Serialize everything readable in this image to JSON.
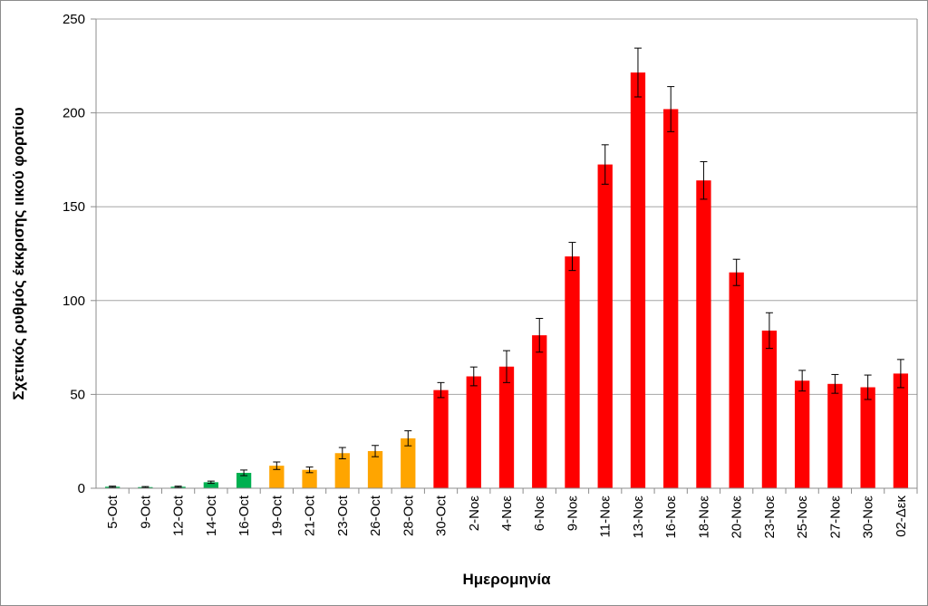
{
  "chart_data": {
    "type": "bar",
    "title": "",
    "xlabel": "Ημερομηνία",
    "ylabel": "Σχετικός ρυθμός έκκρισης ιικού φορτίου",
    "ylim": [
      0,
      250
    ],
    "yticks": [
      0,
      50,
      100,
      150,
      200,
      250
    ],
    "grid": true,
    "legend": "none",
    "categories": [
      "5-Oct",
      "9-Oct",
      "12-Oct",
      "14-Oct",
      "16-Oct",
      "19-Oct",
      "21-Oct",
      "23-Oct",
      "26-Oct",
      "28-Oct",
      "30-Oct",
      "2-Νοε",
      "4-Νοε",
      "6-Νοε",
      "9-Νοε",
      "11-Νοε",
      "13-Νοε",
      "16-Νοε",
      "18-Νοε",
      "20-Νοε",
      "23-Νοε",
      "25-Νοε",
      "27-Νοε",
      "30-Νοε",
      "02-Δεκ"
    ],
    "values": [
      0.8,
      0.6,
      0.8,
      3.2,
      8.2,
      12.0,
      9.8,
      18.7,
      19.8,
      26.6,
      52.3,
      59.6,
      64.8,
      81.5,
      123.5,
      172.5,
      221.5,
      202.0,
      164.0,
      115.0,
      84.0,
      57.3,
      55.6,
      53.8,
      61.1
    ],
    "error": [
      0.3,
      0.3,
      0.3,
      0.6,
      1.5,
      2.0,
      1.5,
      3.0,
      3.0,
      4.0,
      4.0,
      5.0,
      8.5,
      9.0,
      7.5,
      10.5,
      13.0,
      12.0,
      10.0,
      7.0,
      9.5,
      5.5,
      5.0,
      6.5,
      7.5
    ],
    "colors": [
      "#00b050",
      "#00b050",
      "#00b050",
      "#00b050",
      "#00b050",
      "#ffa500",
      "#ffa500",
      "#ffa500",
      "#ffa500",
      "#ffa500",
      "#ff0000",
      "#ff0000",
      "#ff0000",
      "#ff0000",
      "#ff0000",
      "#ff0000",
      "#ff0000",
      "#ff0000",
      "#ff0000",
      "#ff0000",
      "#ff0000",
      "#ff0000",
      "#ff0000",
      "#ff0000",
      "#ff0000"
    ],
    "gridline_color": "#a6a6a6",
    "axis_color": "#8c8c8c"
  }
}
